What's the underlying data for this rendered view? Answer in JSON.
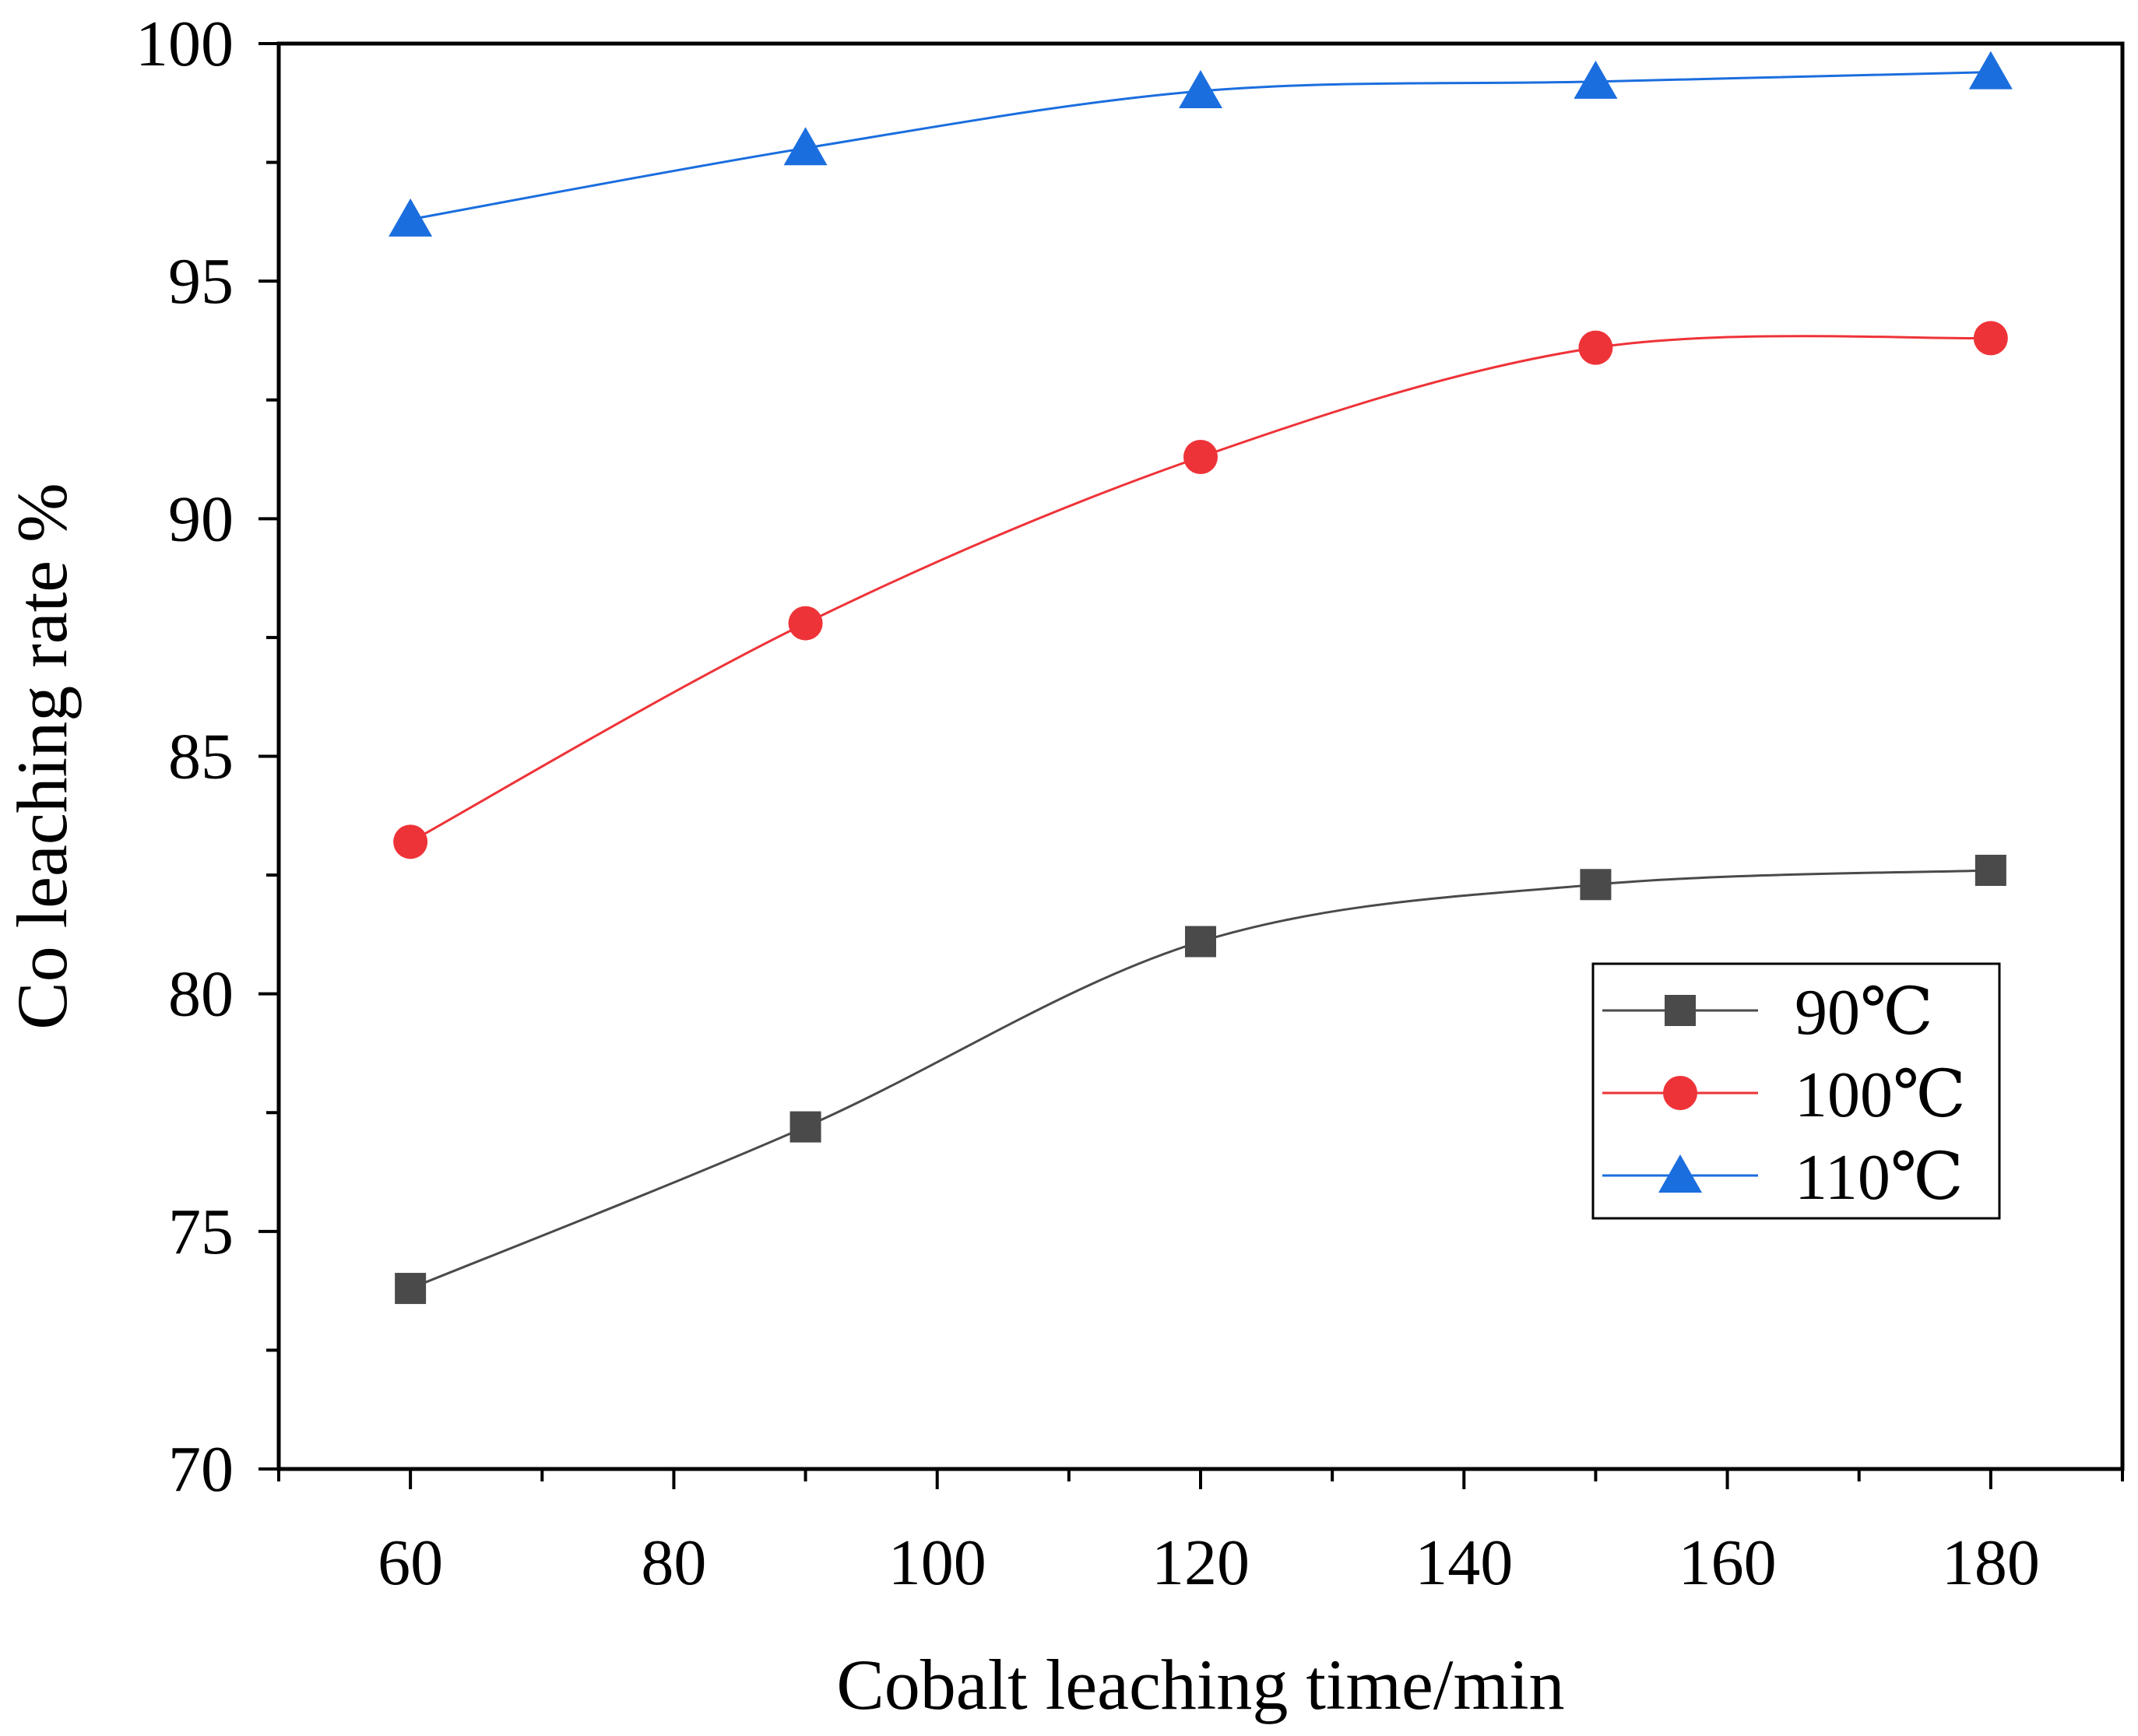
{
  "chart_data": {
    "type": "line",
    "title": "",
    "xlabel": "Cobalt leaching time/min",
    "ylabel": "Co leaching rate %",
    "x": [
      60,
      90,
      120,
      150,
      180
    ],
    "xlim": [
      50,
      190
    ],
    "ylim": [
      70,
      100
    ],
    "xticks": [
      60,
      80,
      100,
      120,
      140,
      160,
      180
    ],
    "xtick_labels": [
      "60",
      "80",
      "100",
      "120",
      "140",
      "160",
      "180"
    ],
    "yticks": [
      70,
      75,
      80,
      85,
      90,
      95,
      100
    ],
    "ytick_labels": [
      "70",
      "75",
      "80",
      "85",
      "90",
      "95",
      "100"
    ],
    "grid": false,
    "legend_position": "center-right",
    "series": [
      {
        "name": "90℃",
        "marker": "square",
        "color": "#4a4a4a",
        "values": [
          73.8,
          77.2,
          81.1,
          82.3,
          82.6
        ]
      },
      {
        "name": "100℃",
        "marker": "circle",
        "color": "#ee3338",
        "values": [
          83.2,
          87.8,
          91.3,
          93.6,
          93.8
        ]
      },
      {
        "name": "110℃",
        "marker": "triangle",
        "color": "#1b6ede",
        "values": [
          96.3,
          97.8,
          99.0,
          99.2,
          99.4
        ]
      }
    ]
  }
}
